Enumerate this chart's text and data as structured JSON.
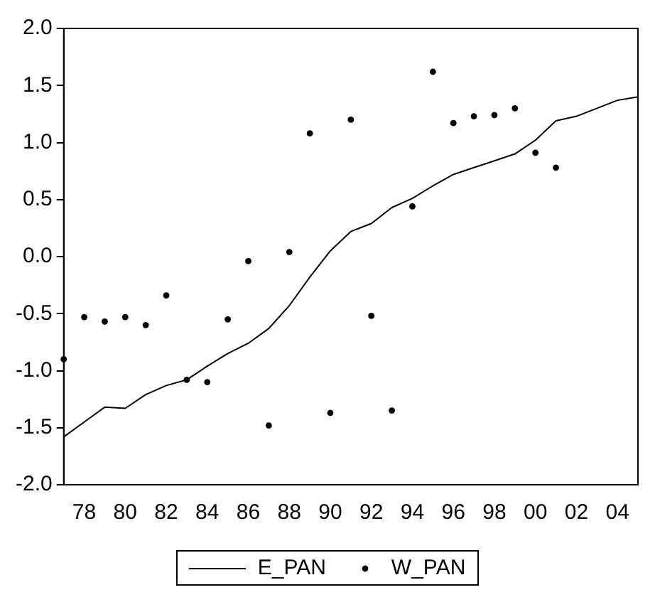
{
  "chart_data": {
    "type": "line",
    "categories": [
      null,
      "78",
      null,
      "80",
      null,
      "82",
      null,
      "84",
      null,
      "86",
      null,
      "88",
      null,
      "90",
      null,
      "92",
      null,
      "94",
      null,
      "96",
      null,
      "98",
      null,
      "00",
      null,
      "02",
      null,
      "04",
      null
    ],
    "series": [
      {
        "name": "E_PAN",
        "color": "#000000",
        "marker": "none",
        "line_style": "solid",
        "values": [
          -1.58,
          -1.45,
          -1.32,
          -1.33,
          -1.21,
          -1.13,
          -1.08,
          -0.96,
          -0.85,
          -0.76,
          -0.63,
          -0.43,
          -0.18,
          0.05,
          0.22,
          0.29,
          0.43,
          0.51,
          0.62,
          0.72,
          0.78,
          0.84,
          0.9,
          1.02,
          1.19,
          1.23,
          1.3,
          1.37,
          1.4
        ]
      },
      {
        "name": "W_PAN",
        "type": "scatter",
        "color": "#000000",
        "marker": "circle",
        "values": [
          -0.9,
          -0.53,
          -0.57,
          -0.53,
          -0.6,
          -0.34,
          -1.08,
          -1.1,
          -0.55,
          -0.04,
          -1.48,
          0.04,
          1.08,
          -1.37,
          1.2,
          -0.52,
          -1.35,
          0.44,
          1.62,
          1.17,
          1.23,
          1.24,
          1.3,
          0.91,
          0.78,
          null,
          null,
          null,
          null
        ]
      }
    ],
    "ylim": [
      -2,
      2
    ],
    "yticks": [
      {
        "value": -2,
        "label": "-2.0"
      },
      -1.5,
      {
        "value": -1,
        "label": "-1.0"
      },
      -0.5,
      {
        "value": 0,
        "label": "0.0"
      },
      0.5,
      {
        "value": 1,
        "label": "1.0"
      },
      1.5,
      {
        "value": 2,
        "label": "2.0"
      }
    ],
    "grid": false,
    "legend": "bottom"
  }
}
